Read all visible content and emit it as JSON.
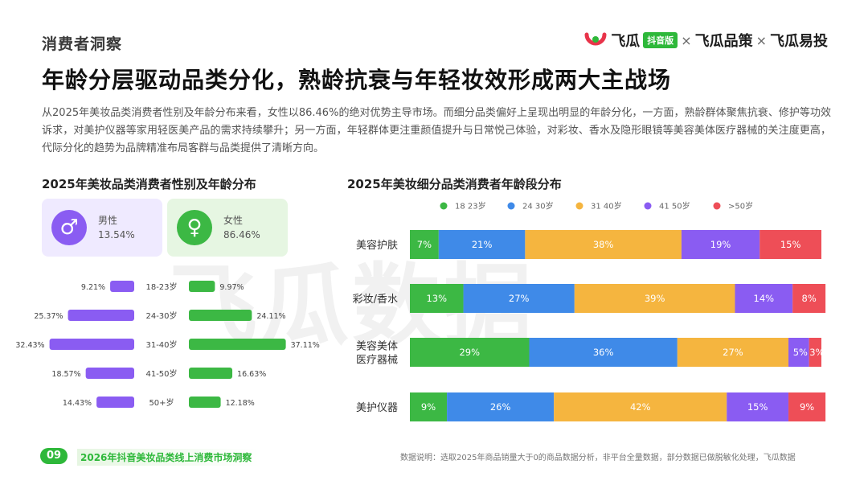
{
  "header": {
    "section_tag": "消费者洞察",
    "brand": {
      "name1": "飞瓜",
      "badge": "抖音版",
      "sep": "×",
      "name2": "飞瓜品策",
      "name3": "飞瓜易投"
    }
  },
  "headline": "年龄分层驱动品类分化，熟龄抗衰与年轻妆效形成两大主战场",
  "paragraph": "从2025年美妆品类消费者性别及年龄分布来看，女性以86.46%的绝对优势主导市场。而细分品类偏好上呈现出明显的年龄分化，一方面，熟龄群体聚焦抗衰、修护等功效诉求，对美护仪器等家用轻医美产品的需求持续攀升；另一方面，年轻群体更注重颜值提升与日常悦己体验，对彩妆、香水及隐形眼镜等美容美体医疗器械的关注度更高，代际分化的趋势为品牌精准布局客群与品类提供了清晰方向。",
  "left_panel": {
    "title": "2025年美妆品类消费者性别及年龄分布",
    "male": {
      "label": "男性",
      "pct": "13.54%",
      "icon": "male-icon"
    },
    "female": {
      "label": "女性",
      "pct": "86.46%",
      "icon": "female-icon"
    }
  },
  "right_panel": {
    "title": "2025年美妆细分品类消费者年龄段分布"
  },
  "colors": {
    "male": "#8a5cf2",
    "female": "#3cb844",
    "age": [
      "#3cb844",
      "#3f8ae8",
      "#f5b53f",
      "#8a5cf2",
      "#ee4e57"
    ]
  },
  "chart_data": [
    {
      "type": "bar",
      "orientation": "horizontal-butterfly",
      "categories": [
        "18-23岁",
        "24-30岁",
        "31-40岁",
        "41-50岁",
        "50+岁"
      ],
      "series": [
        {
          "name": "男性",
          "values": [
            9.21,
            25.37,
            32.43,
            18.57,
            14.43
          ],
          "labels": [
            "9.21%",
            "25.37%",
            "32.43%",
            "18.57%",
            "14.43%"
          ]
        },
        {
          "name": "女性",
          "values": [
            9.97,
            24.11,
            37.11,
            16.63,
            12.18
          ],
          "labels": [
            "9.97%",
            "24.11%",
            "37.11%",
            "16.63%",
            "12.18%"
          ]
        }
      ]
    },
    {
      "type": "bar",
      "orientation": "horizontal-stacked-100",
      "categories": [
        "美容护肤",
        "彩妆/香水",
        "美容美体医疗器械",
        "美护仪器"
      ],
      "category_lines": [
        [
          "美容护肤"
        ],
        [
          "彩妆/香水"
        ],
        [
          "美容美体",
          "医疗器械"
        ],
        [
          "美护仪器"
        ]
      ],
      "series": [
        {
          "name": "18 23岁",
          "values": [
            7,
            13,
            29,
            9
          ]
        },
        {
          "name": "24 30岁",
          "values": [
            21,
            27,
            36,
            26
          ]
        },
        {
          "name": "31 40岁",
          "values": [
            38,
            39,
            27,
            42
          ]
        },
        {
          "name": "41 50岁",
          "values": [
            19,
            14,
            5,
            15
          ]
        },
        {
          "name": ">50岁",
          "values": [
            15,
            8,
            3,
            9
          ]
        }
      ],
      "legend_position": "top"
    }
  ],
  "footer": {
    "page_no": "09",
    "report_title": "2026年抖音美妆品类线上消费市场洞察",
    "note": "数据说明：选取2025年商品销量大于0的商品数据分析，非平台全量数据，部分数据已做脱敏化处理，飞瓜数据"
  },
  "watermark": "飞瓜数据"
}
